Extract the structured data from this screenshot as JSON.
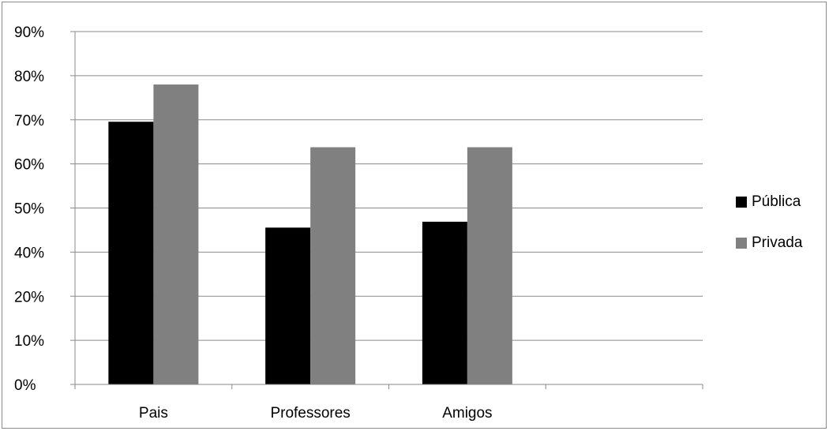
{
  "chart_data": {
    "type": "bar",
    "categories": [
      "Pais",
      "Professores",
      "Amigos"
    ],
    "series": [
      {
        "name": "Pública",
        "values": [
          67,
          40,
          41.5
        ],
        "color": "#000000"
      },
      {
        "name": "Privada",
        "values": [
          76.5,
          60.5,
          60.5
        ],
        "color": "#808080"
      }
    ],
    "y_tick_labels": [
      "0%",
      "10%",
      "20%",
      "40%",
      "50%",
      "60%",
      "70%",
      "80%",
      "90%"
    ],
    "ylim": [
      0,
      90
    ],
    "grid": true,
    "legend_position": "right",
    "title": "",
    "xlabel": "",
    "ylabel": ""
  }
}
